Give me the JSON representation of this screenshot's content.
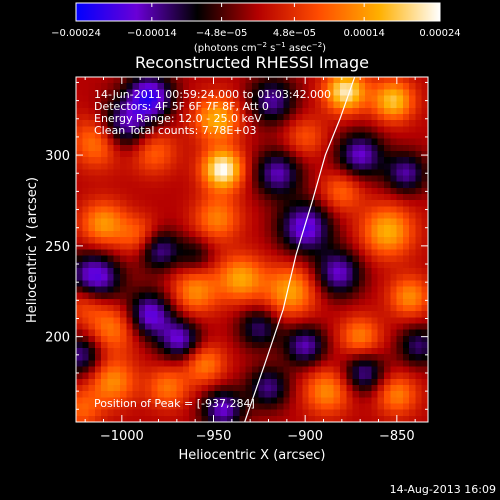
{
  "chart_data": {
    "type": "heatmap",
    "title": "Reconstructed RHESSI Image",
    "xlabel": "Heliocentric X (arcsec)",
    "ylabel": "Heliocentric Y (arcsec)",
    "xlim": [
      -1025,
      -833
    ],
    "ylim": [
      153,
      343
    ],
    "x_ticks": [
      -1000,
      -950,
      -900,
      -850
    ],
    "x_tick_labels": [
      "−1000",
      "−950",
      "−900",
      "−850"
    ],
    "y_ticks": [
      200,
      250,
      300
    ],
    "y_tick_labels": [
      "200",
      "250",
      "300"
    ],
    "colorbar": {
      "range": [
        -0.00024,
        0.00024
      ],
      "ticks": [
        -0.00024,
        -0.00014,
        -4.8e-05,
        4.8e-05,
        0.00014,
        0.00024
      ],
      "tick_labels": [
        "−0.00024",
        "−0.00014",
        "−4.8e−05",
        "4.8e−05",
        "0.00014",
        "0.00024"
      ],
      "unit_main": "(photons cm",
      "unit_exp1": "−2",
      "unit_mid": " s",
      "unit_exp2": "−1",
      "unit_end": " asec",
      "unit_exp3": "−2",
      "unit_close": ")",
      "stops": [
        "#0000ff",
        "#6a00d6",
        "#000000",
        "#b40000",
        "#ff4c00",
        "#ffb000",
        "#ffffff"
      ]
    },
    "info_lines": [
      "14-Jun-2011 00:59:24.000 to 01:03:42.000",
      "Detectors: 4F 5F 6F 7F 8F, Att 0",
      "Energy Range: 12.0 - 25.0 keV",
      "Clean     Total counts: 7.78E+03"
    ],
    "peak_label": "Position of Peak = [-937,284]",
    "peak_position": [
      -937,
      284
    ],
    "limb_curve": [
      [
        -933,
        153
      ],
      [
        -922,
        185
      ],
      [
        -912,
        215
      ],
      [
        -905,
        245
      ],
      [
        -896,
        275
      ],
      [
        -889,
        300
      ],
      [
        -881,
        320
      ],
      [
        -873,
        343
      ]
    ],
    "blobs": [
      {
        "x": -945,
        "y": 292,
        "v": 0.00024,
        "s": 8
      },
      {
        "x": -948,
        "y": 320,
        "v": 0.00016,
        "s": 9
      },
      {
        "x": -948,
        "y": 265,
        "v": 0.00012,
        "s": 9
      },
      {
        "x": -1012,
        "y": 308,
        "v": 0.00015,
        "s": 10
      },
      {
        "x": -983,
        "y": 302,
        "v": 0.0001,
        "s": 9
      },
      {
        "x": -1010,
        "y": 262,
        "v": 0.00014,
        "s": 9
      },
      {
        "x": -990,
        "y": 255,
        "v": 0.0001,
        "s": 8
      },
      {
        "x": -960,
        "y": 225,
        "v": 0.00013,
        "s": 9
      },
      {
        "x": -935,
        "y": 232,
        "v": 0.00015,
        "s": 9
      },
      {
        "x": -908,
        "y": 225,
        "v": 0.00015,
        "s": 10
      },
      {
        "x": -1005,
        "y": 205,
        "v": 0.00012,
        "s": 10
      },
      {
        "x": -1020,
        "y": 220,
        "v": 0.0001,
        "s": 8
      },
      {
        "x": -1005,
        "y": 175,
        "v": 0.00013,
        "s": 9
      },
      {
        "x": -975,
        "y": 172,
        "v": 0.00011,
        "s": 8
      },
      {
        "x": -955,
        "y": 185,
        "v": 0.00012,
        "s": 8
      },
      {
        "x": -878,
        "y": 335,
        "v": 0.00022,
        "s": 8
      },
      {
        "x": -852,
        "y": 330,
        "v": 0.00018,
        "s": 8
      },
      {
        "x": -855,
        "y": 258,
        "v": 0.00016,
        "s": 10
      },
      {
        "x": -843,
        "y": 222,
        "v": 0.00013,
        "s": 8
      },
      {
        "x": -870,
        "y": 200,
        "v": 0.00012,
        "s": 8
      },
      {
        "x": -888,
        "y": 170,
        "v": 0.00013,
        "s": 9
      },
      {
        "x": -850,
        "y": 168,
        "v": 0.00012,
        "s": 8
      },
      {
        "x": -900,
        "y": 310,
        "v": 8e-05,
        "s": 8
      },
      {
        "x": -880,
        "y": 280,
        "v": 0.0001,
        "s": 8
      },
      {
        "x": -1022,
        "y": 160,
        "v": 9e-05,
        "s": 8
      },
      {
        "x": -1000,
        "y": 315,
        "v": -0.00018,
        "s": 10
      },
      {
        "x": -985,
        "y": 332,
        "v": -0.0002,
        "s": 9
      },
      {
        "x": -1015,
        "y": 232,
        "v": -0.0002,
        "s": 10
      },
      {
        "x": -985,
        "y": 212,
        "v": -0.00018,
        "s": 9
      },
      {
        "x": -980,
        "y": 248,
        "v": -0.00015,
        "s": 8
      },
      {
        "x": -968,
        "y": 198,
        "v": -0.00016,
        "s": 8
      },
      {
        "x": -945,
        "y": 160,
        "v": -0.00016,
        "s": 8
      },
      {
        "x": -900,
        "y": 260,
        "v": -0.00018,
        "s": 10
      },
      {
        "x": -915,
        "y": 290,
        "v": -0.00015,
        "s": 9
      },
      {
        "x": -918,
        "y": 330,
        "v": -0.00014,
        "s": 9
      },
      {
        "x": -870,
        "y": 300,
        "v": -0.00016,
        "s": 9
      },
      {
        "x": -845,
        "y": 290,
        "v": -0.00014,
        "s": 8
      },
      {
        "x": -882,
        "y": 235,
        "v": -0.00016,
        "s": 9
      },
      {
        "x": -900,
        "y": 195,
        "v": -0.00015,
        "s": 8
      },
      {
        "x": -868,
        "y": 180,
        "v": -0.00014,
        "s": 8
      },
      {
        "x": -925,
        "y": 205,
        "v": -0.00012,
        "s": 8
      },
      {
        "x": -920,
        "y": 172,
        "v": -0.00013,
        "s": 8
      },
      {
        "x": -1022,
        "y": 190,
        "v": -0.00014,
        "s": 8
      },
      {
        "x": -838,
        "y": 195,
        "v": -0.00012,
        "s": 8
      },
      {
        "x": -960,
        "y": 245,
        "v": -8e-05,
        "s": 7
      }
    ]
  },
  "footer": {
    "date": "14-Aug-2013 16:09"
  }
}
